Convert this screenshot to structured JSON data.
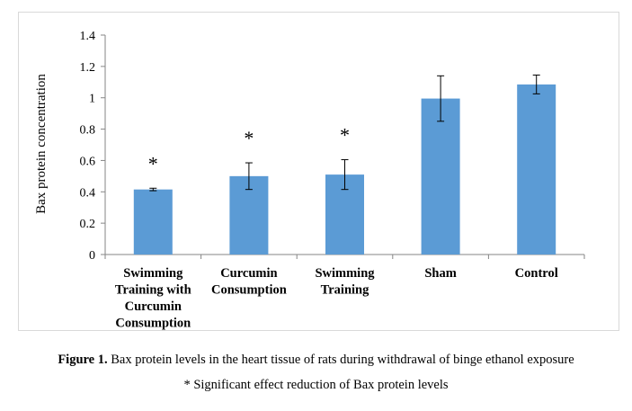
{
  "chart_data": {
    "type": "bar",
    "categories": [
      [
        "Swimming",
        "Training with",
        "Curcumin",
        "Consumption"
      ],
      [
        "Curcumin",
        "Consumption"
      ],
      [
        "Swimming",
        "Training"
      ],
      [
        "Sham"
      ],
      [
        "Control"
      ]
    ],
    "values": [
      0.415,
      0.5,
      0.51,
      0.995,
      1.085
    ],
    "error": [
      0.008,
      0.085,
      0.095,
      0.145,
      0.06
    ],
    "significance": [
      "*",
      "*",
      "*",
      "",
      ""
    ],
    "ylabel": "Bax protein concentration",
    "xlabel": "",
    "ylim": [
      0,
      1.4
    ],
    "yticks": [
      "0",
      "0.2",
      "0.4",
      "0.6",
      "0.8",
      "1",
      "1.2",
      "1.4"
    ],
    "bar_color": "#5b9bd5",
    "grid": false,
    "legend": "none"
  },
  "caption": {
    "label": "Figure 1.",
    "text": " Bax protein levels in the heart tissue of rats during withdrawal of binge ethanol exposure",
    "note": "* Significant effect reduction of Bax protein levels"
  }
}
